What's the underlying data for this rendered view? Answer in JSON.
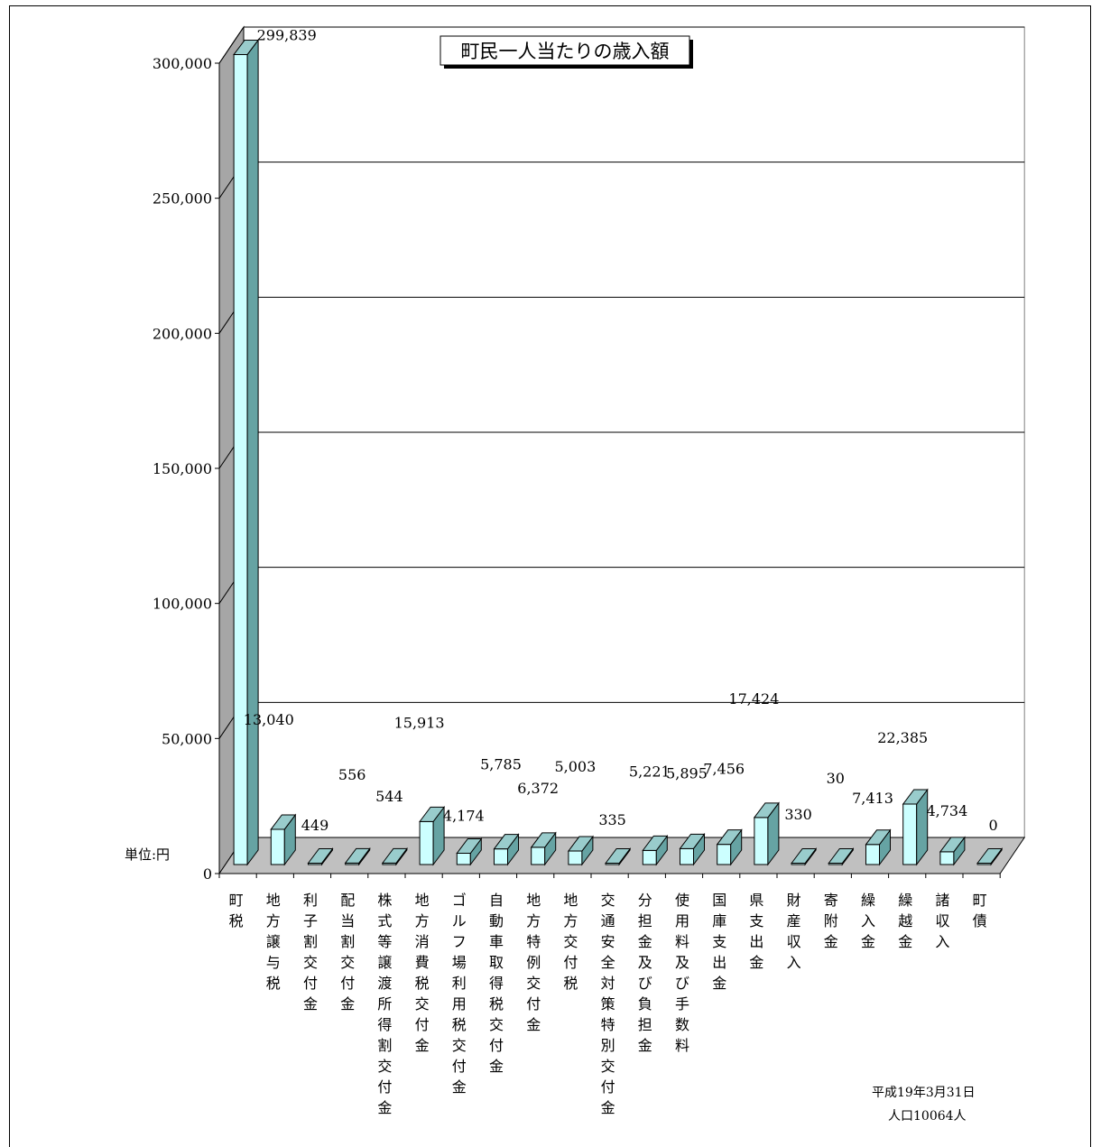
{
  "chart_data": {
    "type": "bar",
    "title": "町民一人当たりの歳入額",
    "unit_label": "単位:円",
    "ylim": [
      0,
      300000
    ],
    "yticks": [
      0,
      50000,
      100000,
      150000,
      200000,
      250000,
      300000
    ],
    "ytick_labels": [
      "0",
      "50,000",
      "100,000",
      "150,000",
      "200,000",
      "250,000",
      "300,000"
    ],
    "categories": [
      "町税",
      "地方譲与税",
      "利子割交付金",
      "配当割交付金",
      "株式等譲渡所得割交付金",
      "地方消費税交付金",
      "ゴルフ場利用税交付金",
      "自動車取得税交付金",
      "地方特例交付金",
      "地方交付税",
      "交通安全対策特別交付金",
      "分担金及び負担金",
      "使用料及び手数料",
      "国庫支出金",
      "県支出金",
      "財産収入",
      "寄附金",
      "繰入金",
      "繰越金",
      "諸収入",
      "町債"
    ],
    "values": [
      299839,
      13040,
      449,
      556,
      544,
      15913,
      4174,
      5785,
      6372,
      5003,
      335,
      5221,
      5895,
      7456,
      17424,
      330,
      30,
      7413,
      22385,
      4734,
      0
    ],
    "value_labels": [
      "299,839",
      "13,040",
      "449",
      "556",
      "544",
      "15,913",
      "4,174",
      "5,785",
      "6,372",
      "5,003",
      "335",
      "5,221",
      "5,895",
      "7,456",
      "17,424",
      "330",
      "30",
      "7,413",
      "22,385",
      "4,734",
      "0"
    ],
    "grid": true,
    "colors": {
      "bar_front": "#ccffff",
      "bar_side": "#66a3a3",
      "bar_top": "#99cccc",
      "floor": "#c0c0c0",
      "left_wall": "#a6a6a6",
      "plot_bg": "#ffffff"
    }
  },
  "footer": {
    "date": "平成19年3月31日",
    "population": "人口10064人"
  }
}
